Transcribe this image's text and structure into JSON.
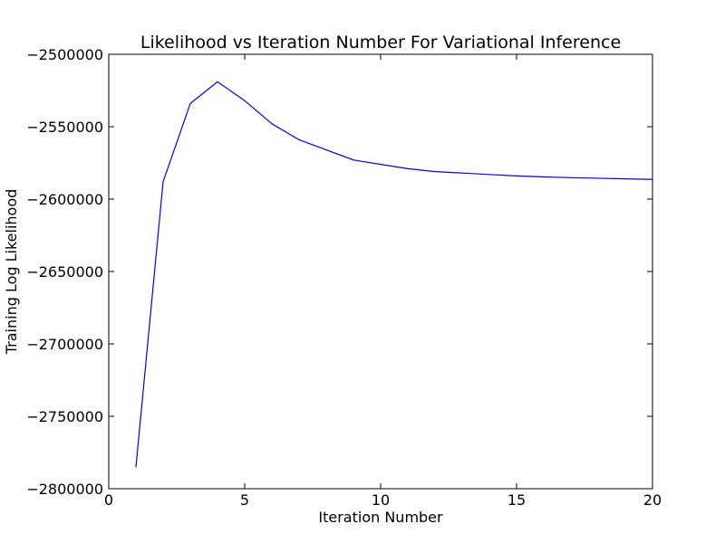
{
  "chart_data": {
    "type": "line",
    "title": "Likelihood vs Iteration Number For Variational Inference",
    "xlabel": "Iteration Number",
    "ylabel": "Training Log Likelihood",
    "xlim": [
      0,
      20
    ],
    "ylim": [
      -2800000,
      -2500000
    ],
    "xticks": [
      0,
      5,
      10,
      15,
      20
    ],
    "xtick_labels": [
      "0",
      "5",
      "10",
      "15",
      "20"
    ],
    "yticks": [
      -2500000,
      -2550000,
      -2600000,
      -2650000,
      -2700000,
      -2750000,
      -2800000
    ],
    "ytick_labels": [
      "−2500000",
      "−2550000",
      "−2600000",
      "−2650000",
      "−2700000",
      "−2750000",
      "−2800000"
    ],
    "grid": false,
    "series": [
      {
        "color": "#0000ff",
        "x": [
          1,
          2,
          3,
          4,
          5,
          6,
          7,
          8,
          9,
          10,
          11,
          12,
          13,
          14,
          15,
          16,
          17,
          18,
          19,
          20
        ],
        "y": [
          -2785000,
          -2588000,
          -2534000,
          -2519000,
          -2532000,
          -2548000,
          -2559000,
          -2566000,
          -2573000,
          -2576000,
          -2579000,
          -2581000,
          -2582000,
          -2583000,
          -2584000,
          -2584700,
          -2585200,
          -2585600,
          -2586000,
          -2586400
        ]
      }
    ]
  }
}
